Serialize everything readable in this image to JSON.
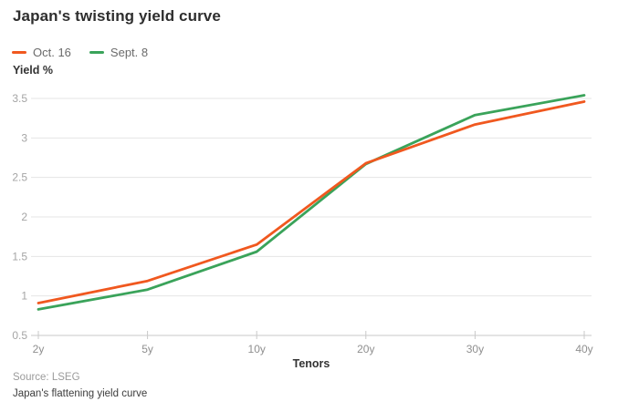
{
  "page": {
    "title": "Japan's twisting yield curve",
    "source": "Source: LSEG",
    "caption": "Japan's flattening yield curve"
  },
  "colors": {
    "oct16": "#f0581f",
    "sept8": "#3aa35a",
    "grid": "#e4e4e4",
    "axis": "#c9c9c9",
    "y_tick_label": "#a5a5a5",
    "x_tick_label": "#8f8f8f"
  },
  "chart_data": {
    "type": "line",
    "title": "Japan's twisting yield curve",
    "categories": [
      "2y",
      "5y",
      "10y",
      "20y",
      "30y",
      "40y"
    ],
    "series": [
      {
        "name": "Oct. 16",
        "color": "#f0581f",
        "values": [
          0.91,
          1.19,
          1.65,
          2.68,
          3.17,
          3.46
        ]
      },
      {
        "name": "Sept. 8",
        "color": "#3aa35a",
        "values": [
          0.83,
          1.08,
          1.56,
          2.67,
          3.29,
          3.54
        ]
      }
    ],
    "xlabel": "Tenors",
    "ylabel": "Yield %",
    "yticks": [
      0.5,
      1,
      1.5,
      2,
      2.5,
      3,
      3.5
    ],
    "ylim": [
      0.5,
      3.5
    ],
    "grid": true,
    "legend_position": "top-left"
  }
}
